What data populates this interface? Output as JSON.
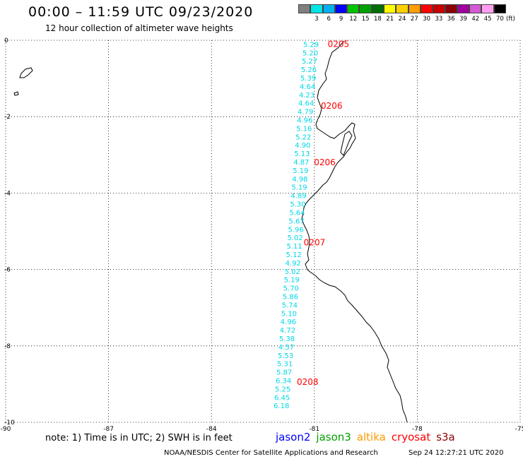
{
  "header": {
    "title": "00:00 – 11:59 UTC 09/23/2020",
    "subtitle": "12 hour collection of altimeter wave heights"
  },
  "colorbar": {
    "colors": [
      "#7f7f7f",
      "#00e5e5",
      "#00b0f0",
      "#0000ff",
      "#00c400",
      "#00a000",
      "#006e00",
      "#ffff00",
      "#ffd000",
      "#ff9e00",
      "#ff0000",
      "#c80000",
      "#8b0000",
      "#a000a0",
      "#d25ad2",
      "#ff9ef0",
      "#000000"
    ],
    "labels": [
      "3",
      "6",
      "9",
      "12",
      "15",
      "18",
      "21",
      "24",
      "27",
      "30",
      "33",
      "36",
      "39",
      "42",
      "45",
      "70"
    ],
    "unit": "(ft)"
  },
  "map": {
    "lon_ticks": [
      "-90",
      "-87",
      "-84",
      "-81",
      "-78",
      "-75"
    ],
    "lat_ticks": [
      "0",
      "-2",
      "-4",
      "-6",
      "-8",
      "-10"
    ],
    "lon_range": [
      -90,
      -75
    ],
    "lat_range": [
      -10,
      0
    ],
    "track_color": "#00d7e6",
    "time_color": "#ff0000",
    "track": [
      {
        "lon": -81.1,
        "lat": -0.1,
        "v": "5.29"
      },
      {
        "lon": -81.12,
        "lat": -0.32,
        "v": "5.20"
      },
      {
        "lon": -81.14,
        "lat": -0.54,
        "v": "5.27"
      },
      {
        "lon": -81.16,
        "lat": -0.76,
        "v": "5.26"
      },
      {
        "lon": -81.18,
        "lat": -0.98,
        "v": "5.39"
      },
      {
        "lon": -81.2,
        "lat": -1.2,
        "v": "4.64"
      },
      {
        "lon": -81.22,
        "lat": -1.42,
        "v": "4.23"
      },
      {
        "lon": -81.24,
        "lat": -1.64,
        "v": "4.64"
      },
      {
        "lon": -81.26,
        "lat": -1.86,
        "v": "4.79"
      },
      {
        "lon": -81.28,
        "lat": -2.08,
        "v": "4.96"
      },
      {
        "lon": -81.3,
        "lat": -2.3,
        "v": "5.16"
      },
      {
        "lon": -81.32,
        "lat": -2.52,
        "v": "5.22"
      },
      {
        "lon": -81.34,
        "lat": -2.74,
        "v": "4.90"
      },
      {
        "lon": -81.36,
        "lat": -2.96,
        "v": "5.13"
      },
      {
        "lon": -81.38,
        "lat": -3.18,
        "v": "4.87"
      },
      {
        "lon": -81.4,
        "lat": -3.4,
        "v": "5.19"
      },
      {
        "lon": -81.42,
        "lat": -3.62,
        "v": "4.98"
      },
      {
        "lon": -81.44,
        "lat": -3.84,
        "v": "5.19"
      },
      {
        "lon": -81.46,
        "lat": -4.06,
        "v": "4.89"
      },
      {
        "lon": -81.48,
        "lat": -4.28,
        "v": "5.30"
      },
      {
        "lon": -81.5,
        "lat": -4.5,
        "v": "5.64"
      },
      {
        "lon": -81.52,
        "lat": -4.72,
        "v": "5.67"
      },
      {
        "lon": -81.54,
        "lat": -4.94,
        "v": "5.96"
      },
      {
        "lon": -81.56,
        "lat": -5.16,
        "v": "5.02"
      },
      {
        "lon": -81.58,
        "lat": -5.38,
        "v": "5.11"
      },
      {
        "lon": -81.6,
        "lat": -5.6,
        "v": "5.12"
      },
      {
        "lon": -81.62,
        "lat": -5.82,
        "v": "4.92"
      },
      {
        "lon": -81.64,
        "lat": -6.04,
        "v": "5.02"
      },
      {
        "lon": -81.66,
        "lat": -6.26,
        "v": "5.19"
      },
      {
        "lon": -81.68,
        "lat": -6.48,
        "v": "5.70"
      },
      {
        "lon": -81.7,
        "lat": -6.7,
        "v": "5.86"
      },
      {
        "lon": -81.72,
        "lat": -6.92,
        "v": "5.74"
      },
      {
        "lon": -81.74,
        "lat": -7.14,
        "v": "5.10"
      },
      {
        "lon": -81.76,
        "lat": -7.36,
        "v": "4.96"
      },
      {
        "lon": -81.78,
        "lat": -7.58,
        "v": "4.72"
      },
      {
        "lon": -81.8,
        "lat": -7.8,
        "v": "5.38"
      },
      {
        "lon": -81.82,
        "lat": -8.02,
        "v": "4.57"
      },
      {
        "lon": -81.84,
        "lat": -8.24,
        "v": "5.53"
      },
      {
        "lon": -81.86,
        "lat": -8.46,
        "v": "5.31"
      },
      {
        "lon": -81.88,
        "lat": -8.68,
        "v": "5.87"
      },
      {
        "lon": -81.9,
        "lat": -8.9,
        "v": "6.34"
      },
      {
        "lon": -81.92,
        "lat": -9.12,
        "v": "5.25"
      },
      {
        "lon": -81.94,
        "lat": -9.34,
        "v": "6.45"
      },
      {
        "lon": -81.96,
        "lat": -9.56,
        "v": "6.18"
      }
    ],
    "times": [
      {
        "lon": -80.9,
        "lat": -0.1,
        "v": "0205"
      },
      {
        "lon": -81.1,
        "lat": -1.72,
        "v": "0206"
      },
      {
        "lon": -81.3,
        "lat": -3.2,
        "v": "0206"
      },
      {
        "lon": -81.6,
        "lat": -5.3,
        "v": "0207"
      },
      {
        "lon": -81.8,
        "lat": -8.95,
        "v": "0208"
      }
    ]
  },
  "footer": {
    "note": "note: 1) Time is in UTC; 2) SWH is in feet",
    "satellites": [
      {
        "name": "jason2",
        "color": "#0000ff"
      },
      {
        "name": "jason3",
        "color": "#00a000"
      },
      {
        "name": "altika",
        "color": "#ff9900"
      },
      {
        "name": "cryosat",
        "color": "#ff0000"
      },
      {
        "name": "s3a",
        "color": "#8b0000"
      }
    ],
    "credit": "NOAA/NESDIS Center for Satellite Applications and Research",
    "timestamp": "Sep 24 12:27:21 UTC 2020"
  }
}
